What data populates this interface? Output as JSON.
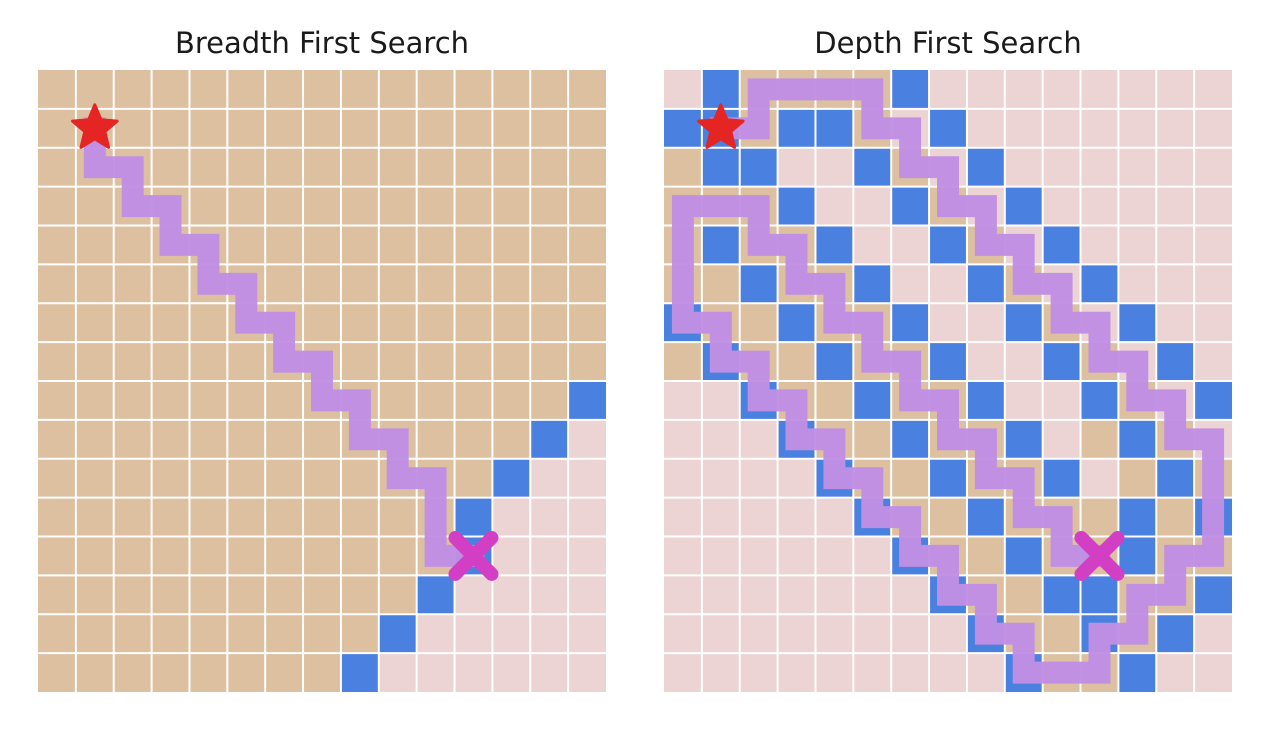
{
  "colors": {
    "explored": "#dcc0a0",
    "unexplored": "#ecd4d4",
    "frontier": "#4a80df",
    "gridline": "#ffffff",
    "path": "#c08ee4",
    "start": "#e52424",
    "goal": "#d23ec4"
  },
  "icons": {
    "start": "star-icon",
    "goal": "cross-icon"
  },
  "grid": {
    "cols": 15,
    "rows": 16
  },
  "panels": [
    {
      "id": "bfs",
      "title": "Breadth First Search",
      "start": [
        1,
        1
      ],
      "goal": [
        11,
        12
      ],
      "explored_rows": [
        [
          0,
          14
        ],
        [
          0,
          14
        ],
        [
          0,
          14
        ],
        [
          0,
          14
        ],
        [
          0,
          14
        ],
        [
          0,
          14
        ],
        [
          0,
          14
        ],
        [
          0,
          14
        ],
        [
          0,
          14
        ],
        [
          0,
          13
        ],
        [
          0,
          12
        ],
        [
          0,
          11
        ],
        [
          0,
          10
        ],
        [
          0,
          9
        ],
        [
          0,
          8
        ],
        [
          0,
          7
        ]
      ],
      "frontier": [
        [
          14,
          8
        ],
        [
          13,
          9
        ],
        [
          12,
          10
        ],
        [
          11,
          11
        ],
        [
          11,
          12
        ],
        [
          10,
          13
        ],
        [
          9,
          14
        ],
        [
          8,
          15
        ]
      ],
      "path": [
        [
          1,
          1
        ],
        [
          1,
          2
        ],
        [
          2,
          2
        ],
        [
          2,
          3
        ],
        [
          3,
          3
        ],
        [
          3,
          4
        ],
        [
          4,
          4
        ],
        [
          4,
          5
        ],
        [
          5,
          5
        ],
        [
          5,
          6
        ],
        [
          6,
          6
        ],
        [
          6,
          7
        ],
        [
          7,
          7
        ],
        [
          7,
          8
        ],
        [
          8,
          8
        ],
        [
          8,
          9
        ],
        [
          9,
          9
        ],
        [
          9,
          10
        ],
        [
          10,
          10
        ],
        [
          10,
          11
        ],
        [
          10,
          12
        ],
        [
          11,
          12
        ]
      ]
    },
    {
      "id": "dfs",
      "title": "Depth First Search",
      "start": [
        1,
        1
      ],
      "goal": [
        11,
        12
      ],
      "explored": [
        [
          0,
          1
        ],
        [
          0,
          2
        ],
        [
          0,
          3
        ],
        [
          0,
          4
        ],
        [
          0,
          5
        ],
        [
          0,
          6
        ],
        [
          0,
          7
        ],
        [
          1,
          0
        ],
        [
          2,
          0
        ],
        [
          3,
          0
        ],
        [
          4,
          0
        ],
        [
          5,
          0
        ],
        [
          6,
          0
        ],
        [
          2,
          1
        ],
        [
          3,
          1
        ],
        [
          1,
          2
        ],
        [
          2,
          2
        ],
        [
          1,
          3
        ],
        [
          2,
          3
        ],
        [
          0,
          3
        ],
        [
          1,
          4
        ],
        [
          1,
          5
        ],
        [
          1,
          6
        ],
        [
          1,
          7
        ],
        [
          2,
          5
        ],
        [
          2,
          6
        ],
        [
          2,
          7
        ],
        [
          2,
          8
        ],
        [
          3,
          4
        ],
        [
          3,
          5
        ],
        [
          3,
          6
        ],
        [
          3,
          7
        ],
        [
          3,
          8
        ],
        [
          3,
          9
        ],
        [
          4,
          6
        ],
        [
          4,
          7
        ],
        [
          4,
          8
        ],
        [
          4,
          9
        ],
        [
          4,
          10
        ],
        [
          5,
          7
        ],
        [
          5,
          8
        ],
        [
          5,
          9
        ],
        [
          5,
          10
        ],
        [
          5,
          11
        ],
        [
          6,
          8
        ],
        [
          6,
          9
        ],
        [
          6,
          10
        ],
        [
          6,
          11
        ],
        [
          6,
          12
        ],
        [
          7,
          9
        ],
        [
          7,
          10
        ],
        [
          7,
          11
        ],
        [
          7,
          12
        ],
        [
          7,
          13
        ],
        [
          8,
          10
        ],
        [
          8,
          11
        ],
        [
          8,
          12
        ],
        [
          8,
          13
        ],
        [
          8,
          14
        ],
        [
          9,
          11
        ],
        [
          9,
          12
        ],
        [
          9,
          13
        ],
        [
          9,
          14
        ],
        [
          9,
          15
        ],
        [
          10,
          12
        ],
        [
          10,
          13
        ],
        [
          10,
          14
        ],
        [
          10,
          15
        ],
        [
          11,
          12
        ],
        [
          11,
          13
        ],
        [
          11,
          14
        ],
        [
          11,
          15
        ],
        [
          5,
          1
        ],
        [
          5,
          2
        ],
        [
          6,
          2
        ],
        [
          6,
          3
        ],
        [
          7,
          3
        ],
        [
          7,
          4
        ],
        [
          8,
          4
        ],
        [
          8,
          5
        ],
        [
          9,
          5
        ],
        [
          9,
          6
        ],
        [
          10,
          6
        ],
        [
          10,
          7
        ],
        [
          11,
          7
        ],
        [
          11,
          8
        ],
        [
          12,
          8
        ],
        [
          12,
          9
        ],
        [
          13,
          9
        ],
        [
          13,
          10
        ],
        [
          14,
          10
        ],
        [
          14,
          11
        ],
        [
          14,
          12
        ],
        [
          14,
          13
        ],
        [
          13,
          13
        ],
        [
          13,
          14
        ],
        [
          12,
          14
        ],
        [
          12,
          15
        ],
        [
          2,
          4
        ],
        [
          3,
          3
        ],
        [
          4,
          4
        ],
        [
          4,
          5
        ],
        [
          5,
          5
        ],
        [
          5,
          6
        ],
        [
          6,
          6
        ],
        [
          6,
          7
        ],
        [
          7,
          7
        ],
        [
          7,
          8
        ],
        [
          8,
          8
        ],
        [
          8,
          9
        ],
        [
          9,
          9
        ],
        [
          9,
          10
        ],
        [
          10,
          10
        ],
        [
          10,
          11
        ],
        [
          11,
          11
        ],
        [
          13,
          12
        ],
        [
          12,
          13
        ],
        [
          11,
          9
        ],
        [
          12,
          10
        ],
        [
          12,
          11
        ],
        [
          12,
          12
        ],
        [
          13,
          11
        ]
      ],
      "frontier": [
        [
          1,
          0
        ],
        [
          6,
          0
        ],
        [
          0,
          1
        ],
        [
          1,
          1
        ],
        [
          3,
          1
        ],
        [
          4,
          1
        ],
        [
          7,
          1
        ],
        [
          1,
          2
        ],
        [
          2,
          2
        ],
        [
          5,
          2
        ],
        [
          8,
          2
        ],
        [
          3,
          3
        ],
        [
          6,
          3
        ],
        [
          9,
          3
        ],
        [
          1,
          4
        ],
        [
          4,
          4
        ],
        [
          7,
          4
        ],
        [
          10,
          4
        ],
        [
          2,
          5
        ],
        [
          5,
          5
        ],
        [
          8,
          5
        ],
        [
          11,
          5
        ],
        [
          0,
          6
        ],
        [
          3,
          6
        ],
        [
          6,
          6
        ],
        [
          9,
          6
        ],
        [
          12,
          6
        ],
        [
          1,
          7
        ],
        [
          4,
          7
        ],
        [
          7,
          7
        ],
        [
          10,
          7
        ],
        [
          13,
          7
        ],
        [
          2,
          8
        ],
        [
          5,
          8
        ],
        [
          8,
          8
        ],
        [
          11,
          8
        ],
        [
          14,
          8
        ],
        [
          3,
          9
        ],
        [
          6,
          9
        ],
        [
          9,
          9
        ],
        [
          12,
          9
        ],
        [
          4,
          10
        ],
        [
          7,
          10
        ],
        [
          10,
          10
        ],
        [
          13,
          10
        ],
        [
          5,
          11
        ],
        [
          8,
          11
        ],
        [
          12,
          11
        ],
        [
          14,
          11
        ],
        [
          6,
          12
        ],
        [
          9,
          12
        ],
        [
          12,
          12
        ],
        [
          7,
          13
        ],
        [
          10,
          13
        ],
        [
          11,
          13
        ],
        [
          14,
          13
        ],
        [
          8,
          14
        ],
        [
          11,
          14
        ],
        [
          13,
          14
        ],
        [
          9,
          15
        ],
        [
          12,
          15
        ]
      ],
      "path": [
        [
          1,
          1
        ],
        [
          2,
          1
        ],
        [
          2,
          0
        ],
        [
          3,
          0
        ],
        [
          4,
          0
        ],
        [
          5,
          0
        ],
        [
          5,
          1
        ],
        [
          6,
          1
        ],
        [
          6,
          2
        ],
        [
          7,
          2
        ],
        [
          7,
          3
        ],
        [
          8,
          3
        ],
        [
          8,
          4
        ],
        [
          9,
          4
        ],
        [
          9,
          5
        ],
        [
          10,
          5
        ],
        [
          10,
          6
        ],
        [
          11,
          6
        ],
        [
          11,
          7
        ],
        [
          12,
          7
        ],
        [
          12,
          8
        ],
        [
          13,
          8
        ],
        [
          13,
          9
        ],
        [
          14,
          9
        ],
        [
          14,
          10
        ],
        [
          14,
          11
        ],
        [
          14,
          12
        ],
        [
          13,
          12
        ],
        [
          13,
          13
        ],
        [
          12,
          13
        ],
        [
          12,
          14
        ],
        [
          11,
          14
        ],
        [
          11,
          15
        ],
        [
          10,
          15
        ],
        [
          9,
          15
        ],
        [
          9,
          14
        ],
        [
          8,
          14
        ],
        [
          8,
          13
        ],
        [
          7,
          13
        ],
        [
          7,
          12
        ],
        [
          6,
          12
        ],
        [
          6,
          11
        ],
        [
          5,
          11
        ],
        [
          5,
          10
        ],
        [
          4,
          10
        ],
        [
          4,
          9
        ],
        [
          3,
          9
        ],
        [
          3,
          8
        ],
        [
          2,
          8
        ],
        [
          2,
          7
        ],
        [
          1,
          7
        ],
        [
          1,
          6
        ],
        [
          0,
          6
        ],
        [
          0,
          5
        ],
        [
          0,
          4
        ],
        [
          0,
          3
        ],
        [
          1,
          3
        ],
        [
          2,
          3
        ],
        [
          2,
          4
        ],
        [
          3,
          4
        ],
        [
          3,
          5
        ],
        [
          4,
          5
        ],
        [
          4,
          6
        ],
        [
          5,
          6
        ],
        [
          5,
          7
        ],
        [
          6,
          7
        ],
        [
          6,
          8
        ],
        [
          7,
          8
        ],
        [
          7,
          9
        ],
        [
          8,
          9
        ],
        [
          8,
          10
        ],
        [
          9,
          10
        ],
        [
          9,
          11
        ],
        [
          10,
          11
        ],
        [
          10,
          12
        ],
        [
          11,
          12
        ]
      ]
    }
  ]
}
